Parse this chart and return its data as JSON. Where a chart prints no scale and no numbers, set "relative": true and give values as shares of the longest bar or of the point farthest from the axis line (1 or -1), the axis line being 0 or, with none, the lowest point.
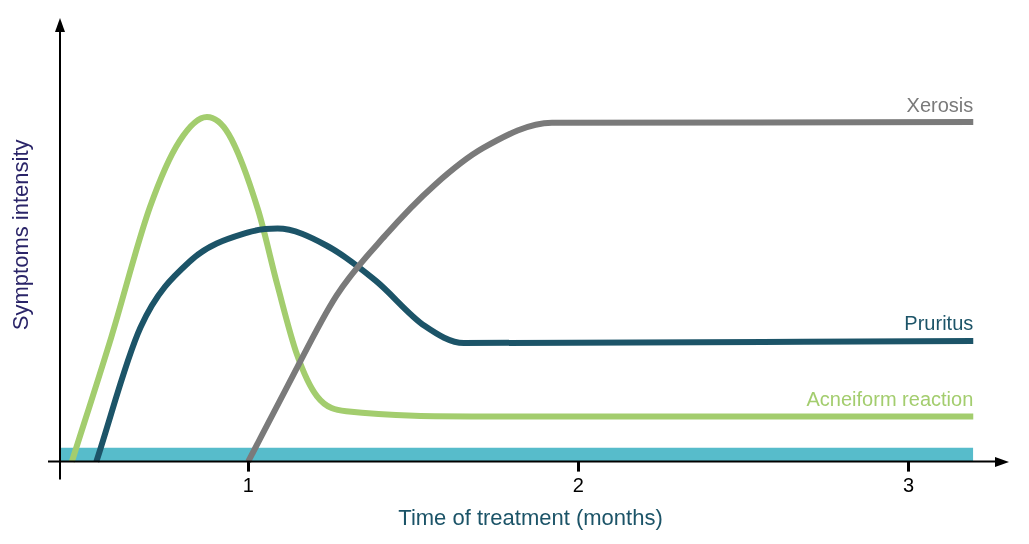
{
  "chart_data": {
    "type": "line",
    "relative": true,
    "xlabel": "Time of treatment (months)",
    "ylabel": "Symptoms intensity",
    "xlim": [
      0.43,
      3.28
    ],
    "xticks": [
      1,
      2,
      3
    ],
    "legend": false,
    "grid": false,
    "marker": "none",
    "line_style": "solid",
    "series": [
      {
        "type": "area",
        "color": "#57bccb",
        "x": [
          0.43,
          3.196
        ],
        "values": [
          0.04,
          0.04
        ]
      },
      {
        "name": "Acneiform reaction",
        "color": "#a3cd6e",
        "x": [
          0.466,
          0.585,
          0.703,
          0.792,
          0.875,
          0.941,
          1.03,
          1.089,
          1.148,
          1.208,
          1.297,
          1.71,
          3.196
        ],
        "values": [
          0,
          0.36,
          0.74,
          0.93,
          1,
          0.95,
          0.73,
          0.51,
          0.31,
          0.19,
          0.146,
          0.131,
          0.131
        ]
      },
      {
        "name": "Pruritus",
        "color": "#1c5468",
        "x": [
          0.54,
          0.674,
          0.822,
          1.0,
          1.089,
          1.237,
          1.386,
          1.534,
          1.653,
          3.196
        ],
        "values": [
          0,
          0.39,
          0.58,
          0.665,
          0.676,
          0.627,
          0.525,
          0.394,
          0.344,
          0.35
        ]
      },
      {
        "name": "Xerosis",
        "color": "#7a7a7a",
        "x": [
          1.0,
          1.119,
          1.267,
          1.415,
          1.564,
          1.712,
          1.92,
          3.196
        ],
        "values": [
          0,
          0.219,
          0.481,
          0.656,
          0.802,
          0.91,
          0.983,
          0.985
        ]
      }
    ]
  }
}
